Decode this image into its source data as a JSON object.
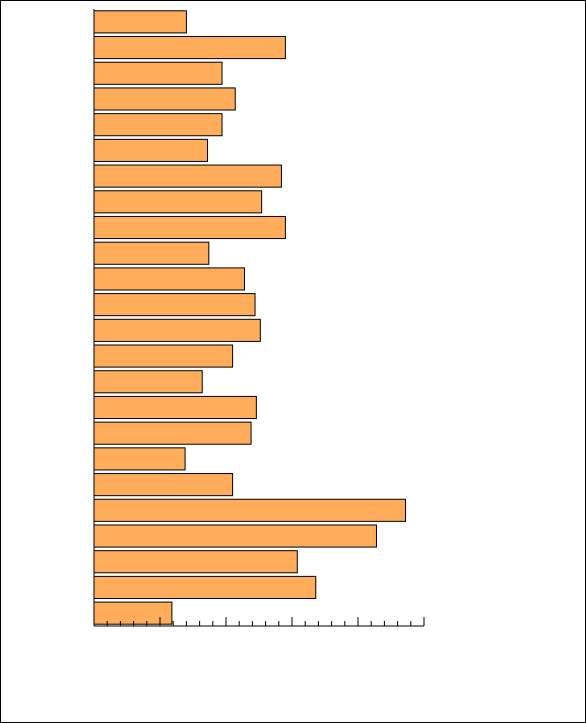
{
  "chart_data": {
    "type": "bar",
    "orientation": "horizontal",
    "categories": [
      null,
      null,
      null,
      null,
      null,
      null,
      null,
      null,
      null,
      null,
      null,
      null,
      null,
      null,
      null,
      null,
      null,
      null,
      null,
      null,
      null,
      null,
      null,
      null
    ],
    "values": [
      7,
      14.5,
      9.7,
      10.7,
      9.7,
      8.6,
      14.2,
      12.7,
      14.5,
      8.7,
      11.4,
      12.2,
      12.6,
      10.5,
      8.2,
      12.3,
      11.9,
      6.9,
      10.5,
      23.6,
      21.4,
      15.4,
      16.8,
      5.9
    ],
    "color": "#ffad5a",
    "xlim": [
      0,
      25
    ],
    "xticks": [
      0,
      1,
      2,
      3,
      4,
      5,
      6,
      7,
      8,
      9,
      10,
      11,
      12,
      13,
      14,
      15,
      16,
      17,
      18,
      19,
      20,
      21,
      22,
      23,
      24,
      25
    ],
    "grid": false
  }
}
